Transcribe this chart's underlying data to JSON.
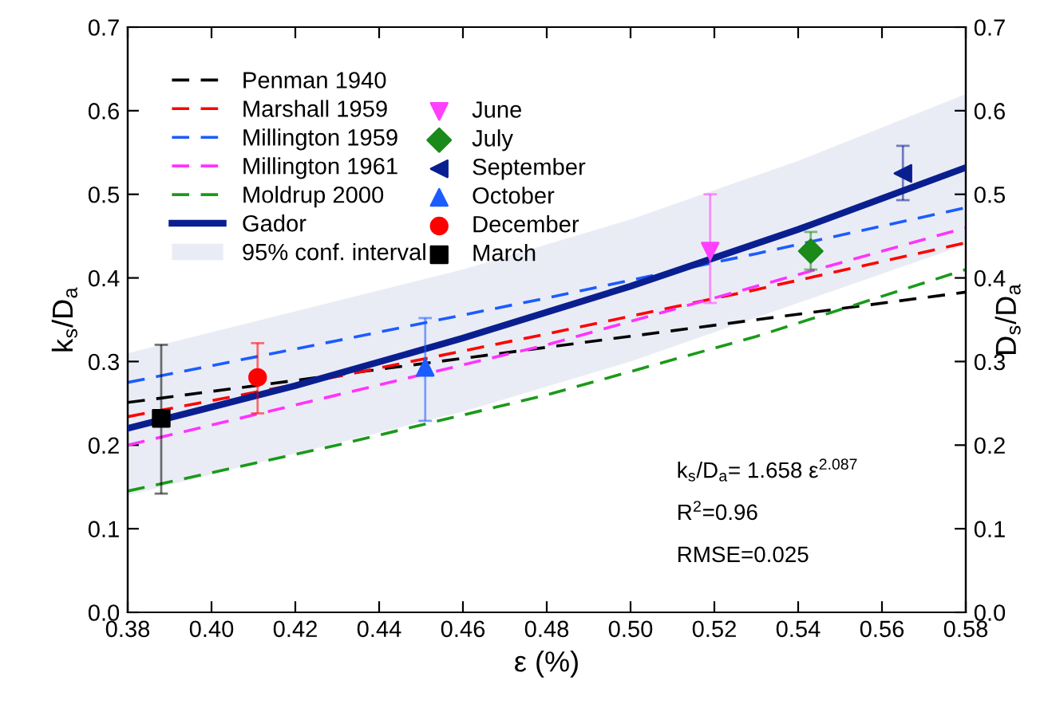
{
  "chart_data": {
    "type": "line",
    "xlabel": "ε (%)",
    "ylabel": "k$_{s}$/D$_{a}$",
    "y2label": "D$_{s}$/D$_{a}$",
    "xlim": [
      0.38,
      0.58
    ],
    "xticks": [
      0.38,
      {
        "value": 0.4,
        "label": "0.40"
      },
      0.42,
      0.44,
      0.46,
      0.48,
      {
        "value": 0.5,
        "label": "0.50"
      },
      0.52,
      0.54,
      0.56,
      0.58
    ],
    "ylim": [
      0,
      0.7
    ],
    "yticks": [
      {
        "value": 0,
        "label": "0.0"
      },
      0.1,
      0.2,
      0.3,
      0.4,
      0.5,
      0.6,
      0.7
    ],
    "y2lim": [
      0,
      0.7
    ],
    "y2ticks": [
      {
        "value": 0,
        "label": "0.0"
      },
      0.1,
      0.2,
      0.3,
      0.4,
      0.5,
      0.6,
      0.7
    ],
    "grid": false,
    "legend": "top left",
    "series": [
      {
        "type": "line",
        "name": "Penman 1940",
        "color": "#000000",
        "line_style": "dashed",
        "x": [
          0.38,
          0.48,
          0.58
        ],
        "values": [
          0.251,
          0.317,
          0.383
        ]
      },
      {
        "type": "line",
        "name": "Marshall 1959",
        "color": "#ff0000",
        "line_style": "dashed",
        "x": [
          0.38,
          0.43,
          0.48,
          0.53,
          0.58
        ],
        "values": [
          0.234,
          0.282,
          0.333,
          0.386,
          0.442
        ]
      },
      {
        "type": "line",
        "name": "Millington 1959",
        "color": "#1a5cff",
        "line_style": "dashed",
        "x": [
          0.38,
          0.43,
          0.48,
          0.53,
          0.58
        ],
        "values": [
          0.275,
          0.325,
          0.376,
          0.429,
          0.484
        ]
      },
      {
        "type": "line",
        "name": "Millington 1961",
        "color": "#ff33ff",
        "line_style": "dashed",
        "x": [
          0.38,
          0.43,
          0.48,
          0.53,
          0.58
        ],
        "values": [
          0.2,
          0.26,
          0.32,
          0.39,
          0.46
        ]
      },
      {
        "type": "line",
        "name": "Moldrup 2000",
        "color": "#1a9a1a",
        "line_style": "dashed",
        "x": [
          0.38,
          0.43,
          0.48,
          0.53,
          0.58
        ],
        "values": [
          0.145,
          0.2,
          0.26,
          0.33,
          0.41
        ]
      },
      {
        "type": "line",
        "name": "Gador",
        "color": "#0a1f8f",
        "line_style": "solid",
        "x": [
          0.38,
          0.42,
          0.46,
          0.5,
          0.54,
          0.58
        ],
        "values": [
          0.22,
          0.271,
          0.328,
          0.39,
          0.458,
          0.532
        ],
        "lower": [
          0.14,
          0.19,
          0.24,
          0.3,
          0.37,
          0.44
        ],
        "upper": [
          0.31,
          0.36,
          0.41,
          0.47,
          0.54,
          0.62
        ]
      },
      {
        "type": "scatter",
        "name": "June",
        "color": "#ff40ff",
        "marker": "triangle_down",
        "x": [
          0.519
        ],
        "values": [
          0.432
        ],
        "errors": [
          [
            0.37,
            0.5
          ]
        ]
      },
      {
        "type": "scatter",
        "name": "July",
        "color": "#1a8a1a",
        "marker": "diamond",
        "x": [
          0.543
        ],
        "values": [
          0.432
        ],
        "errors": [
          [
            0.41,
            0.455
          ]
        ]
      },
      {
        "type": "scatter",
        "name": "September",
        "color": "#0a1f8f",
        "marker": "triangle_left",
        "x": [
          0.565
        ],
        "values": [
          0.525
        ],
        "errors": [
          [
            0.493,
            0.558
          ]
        ]
      },
      {
        "type": "scatter",
        "name": "October",
        "color": "#1a5cff",
        "marker": "triangle",
        "x": [
          0.451
        ],
        "values": [
          0.293
        ],
        "errors": [
          [
            0.229,
            0.352
          ]
        ]
      },
      {
        "type": "scatter",
        "name": "December",
        "color": "#ff0000",
        "marker": "circle",
        "x": [
          0.411
        ],
        "values": [
          0.281
        ],
        "errors": [
          [
            0.238,
            0.322
          ]
        ]
      },
      {
        "type": "scatter",
        "name": "March",
        "color": "#000000",
        "marker": "square",
        "x": [
          0.388
        ],
        "values": [
          0.232
        ],
        "errors": [
          [
            0.142,
            0.32
          ]
        ]
      }
    ],
    "annotations": [
      "95% conf. interval",
      "k$_{s}$/D$_{a}$= 1.658 ε$^{2.087}$",
      "R$^{2}$=0.96",
      "RMSE=0.025"
    ]
  }
}
